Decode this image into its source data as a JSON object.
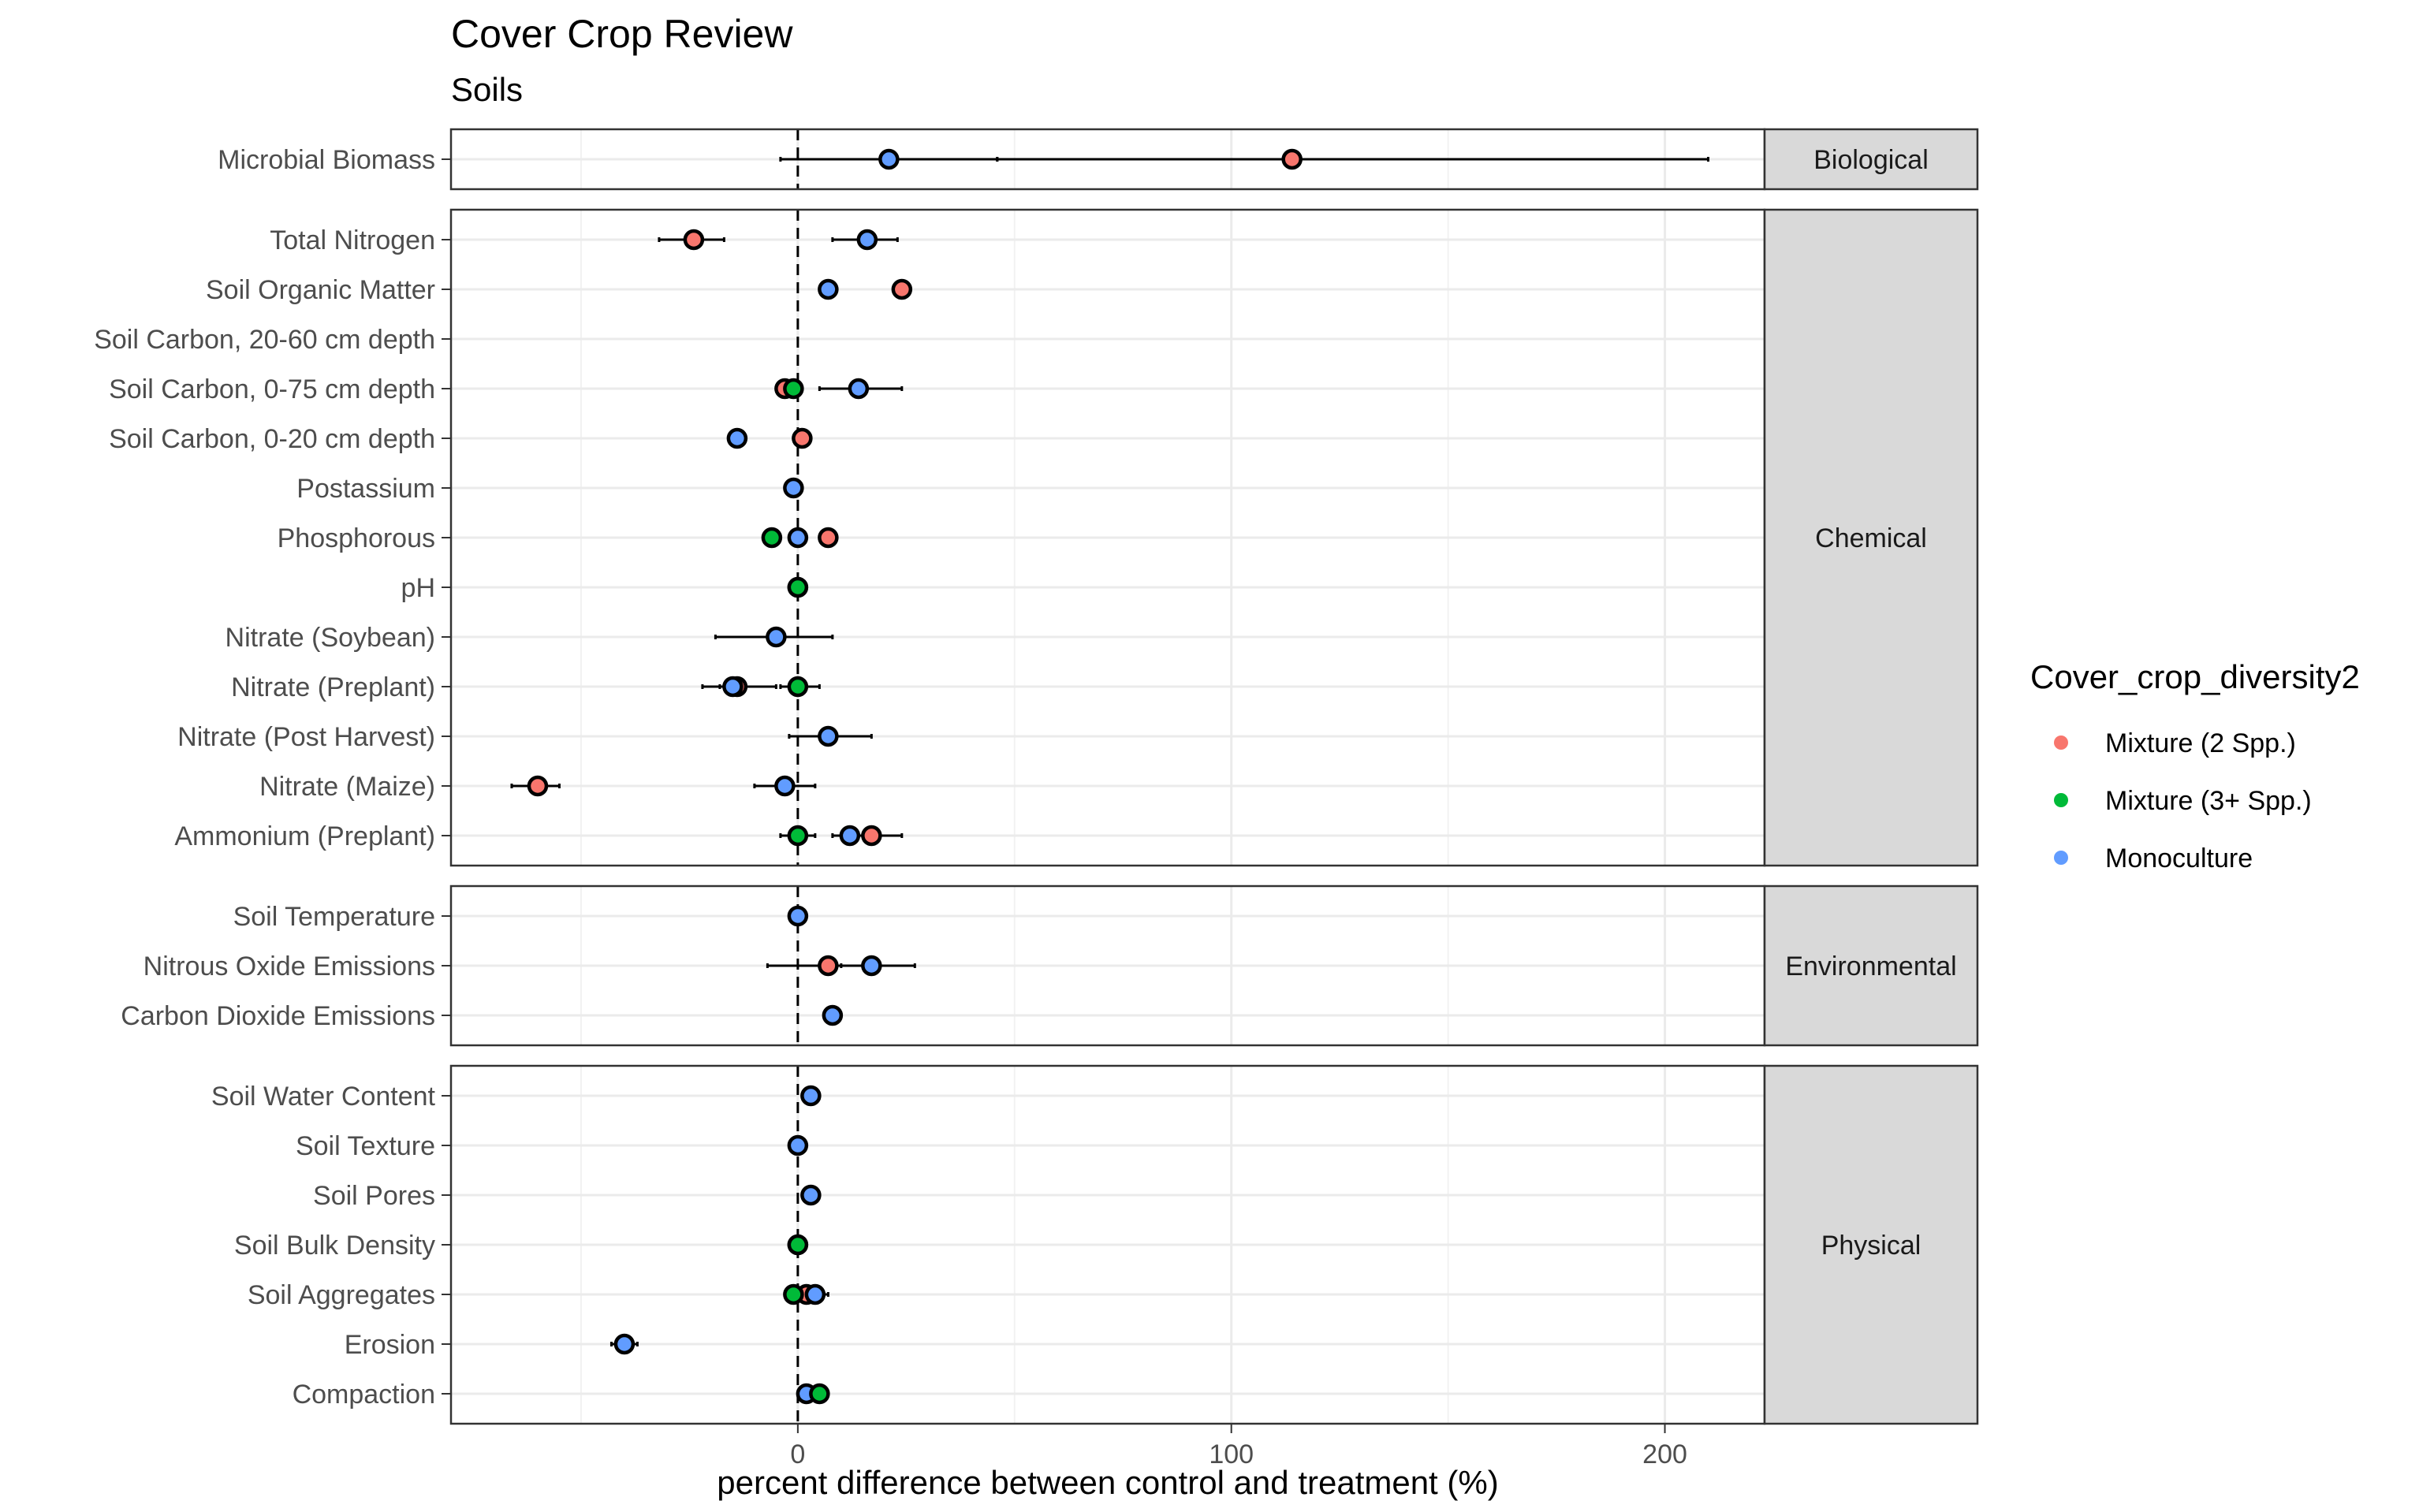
{
  "chart_data": {
    "type": "dot-errorbar",
    "title": "Cover Crop Review",
    "subtitle": "Soils",
    "xlabel": "percent difference between control and treatment (%)",
    "xlim": [
      -80,
      223
    ],
    "xticks": [
      0,
      100,
      200
    ],
    "grid": true,
    "reference_line_x": 0,
    "legend": {
      "title": "Cover_crop_diversity2",
      "placement": "right",
      "entries": [
        {
          "name": "Mixture (2 Spp.)",
          "color": "#F8766D"
        },
        {
          "name": "Mixture (3+ Spp.)",
          "color": "#00BA38"
        },
        {
          "name": "Monoculture",
          "color": "#619CFF"
        }
      ]
    },
    "panels": [
      {
        "label": "Biological",
        "rows": [
          {
            "label": "Microbial Biomass",
            "points": [
              {
                "series": "Mixture (2 Spp.)",
                "x": 114,
                "lo": 46,
                "hi": 210
              },
              {
                "series": "Monoculture",
                "x": 21,
                "lo": -4,
                "hi": 46
              }
            ]
          }
        ]
      },
      {
        "label": "Chemical",
        "rows": [
          {
            "label": "Total Nitrogen",
            "points": [
              {
                "series": "Mixture (2 Spp.)",
                "x": -24,
                "lo": -32,
                "hi": -17
              },
              {
                "series": "Monoculture",
                "x": 16,
                "lo": 8,
                "hi": 23
              }
            ]
          },
          {
            "label": "Soil Organic Matter",
            "points": [
              {
                "series": "Monoculture",
                "x": 7,
                "lo": 6,
                "hi": 8
              },
              {
                "series": "Mixture (2 Spp.)",
                "x": 24,
                "lo": 23,
                "hi": 25
              }
            ]
          },
          {
            "label": "Soil Carbon, 20-60 cm depth",
            "points": []
          },
          {
            "label": "Soil Carbon, 0-75 cm depth",
            "points": [
              {
                "series": "Mixture (2 Spp.)",
                "x": -3,
                "lo": -5,
                "hi": -1
              },
              {
                "series": "Mixture (3+ Spp.)",
                "x": -1,
                "lo": -2,
                "hi": 0
              },
              {
                "series": "Monoculture",
                "x": 14,
                "lo": 5,
                "hi": 24
              }
            ]
          },
          {
            "label": "Soil Carbon, 0-20 cm depth",
            "points": [
              {
                "series": "Monoculture",
                "x": -14,
                "lo": -16,
                "hi": -12
              },
              {
                "series": "Mixture (2 Spp.)",
                "x": 1,
                "lo": 0,
                "hi": 2
              }
            ]
          },
          {
            "label": "Postassium",
            "points": [
              {
                "series": "Monoculture",
                "x": -1,
                "lo": -2,
                "hi": 0
              }
            ]
          },
          {
            "label": "Phosphorous",
            "points": [
              {
                "series": "Mixture (3+ Spp.)",
                "x": -6,
                "lo": -7,
                "hi": -5
              },
              {
                "series": "Monoculture",
                "x": 0,
                "lo": -1,
                "hi": 1
              },
              {
                "series": "Mixture (2 Spp.)",
                "x": 7,
                "lo": 6,
                "hi": 8
              }
            ]
          },
          {
            "label": "pH",
            "points": [
              {
                "series": "Mixture (2 Spp.)",
                "x": 0,
                "lo": -1,
                "hi": 1
              },
              {
                "series": "Mixture (3+ Spp.)",
                "x": 0,
                "lo": -1,
                "hi": 1
              }
            ]
          },
          {
            "label": "Nitrate (Soybean)",
            "points": [
              {
                "series": "Monoculture",
                "x": -5,
                "lo": -19,
                "hi": 8
              }
            ]
          },
          {
            "label": "Nitrate (Preplant)",
            "points": [
              {
                "series": "Mixture (2 Spp.)",
                "x": -14,
                "lo": -22,
                "hi": -5
              },
              {
                "series": "Monoculture",
                "x": -15,
                "lo": -18,
                "hi": -12
              },
              {
                "series": "Mixture (3+ Spp.)",
                "x": 0,
                "lo": -4,
                "hi": 5
              }
            ]
          },
          {
            "label": "Nitrate (Post Harvest)",
            "points": [
              {
                "series": "Monoculture",
                "x": 7,
                "lo": -2,
                "hi": 17
              }
            ]
          },
          {
            "label": "Nitrate (Maize)",
            "points": [
              {
                "series": "Mixture (2 Spp.)",
                "x": -60,
                "lo": -66,
                "hi": -55
              },
              {
                "series": "Monoculture",
                "x": -3,
                "lo": -10,
                "hi": 4
              }
            ]
          },
          {
            "label": "Ammonium (Preplant)",
            "points": [
              {
                "series": "Mixture (2 Spp.)",
                "x": 17,
                "lo": 12,
                "hi": 24
              },
              {
                "series": "Monoculture",
                "x": 12,
                "lo": 8,
                "hi": 17
              },
              {
                "series": "Mixture (3+ Spp.)",
                "x": 0,
                "lo": -4,
                "hi": 4
              }
            ]
          }
        ]
      },
      {
        "label": "Environmental",
        "rows": [
          {
            "label": "Soil Temperature",
            "points": [
              {
                "series": "Monoculture",
                "x": 0,
                "lo": -1,
                "hi": 1
              }
            ]
          },
          {
            "label": "Nitrous Oxide Emissions",
            "points": [
              {
                "series": "Mixture (2 Spp.)",
                "x": 7,
                "lo": -7,
                "hi": 18
              },
              {
                "series": "Monoculture",
                "x": 17,
                "lo": 10,
                "hi": 27
              }
            ]
          },
          {
            "label": "Carbon Dioxide Emissions",
            "points": [
              {
                "series": "Monoculture",
                "x": 8,
                "lo": 7,
                "hi": 9
              }
            ]
          }
        ]
      },
      {
        "label": "Physical",
        "rows": [
          {
            "label": "Soil Water Content",
            "points": [
              {
                "series": "Monoculture",
                "x": 3,
                "lo": 2,
                "hi": 4
              }
            ]
          },
          {
            "label": "Soil Texture",
            "points": [
              {
                "series": "Monoculture",
                "x": 0,
                "lo": -1,
                "hi": 1
              }
            ]
          },
          {
            "label": "Soil Pores",
            "points": [
              {
                "series": "Monoculture",
                "x": 3,
                "lo": 2,
                "hi": 4
              }
            ]
          },
          {
            "label": "Soil Bulk Density",
            "points": [
              {
                "series": "Monoculture",
                "x": 0,
                "lo": -2,
                "hi": 2
              },
              {
                "series": "Mixture (3+ Spp.)",
                "x": 0,
                "lo": -1,
                "hi": 1
              }
            ]
          },
          {
            "label": "Soil Aggregates",
            "points": [
              {
                "series": "Mixture (2 Spp.)",
                "x": 2,
                "lo": 0,
                "hi": 4
              },
              {
                "series": "Monoculture",
                "x": 4,
                "lo": 2,
                "hi": 7
              },
              {
                "series": "Mixture (3+ Spp.)",
                "x": -1,
                "lo": -2,
                "hi": 0
              }
            ]
          },
          {
            "label": "Erosion",
            "points": [
              {
                "series": "Monoculture",
                "x": -40,
                "lo": -43,
                "hi": -37
              }
            ]
          },
          {
            "label": "Compaction",
            "points": [
              {
                "series": "Monoculture",
                "x": 2,
                "lo": 1,
                "hi": 3
              },
              {
                "series": "Mixture (3+ Spp.)",
                "x": 5,
                "lo": 4,
                "hi": 6
              }
            ]
          }
        ]
      }
    ]
  }
}
